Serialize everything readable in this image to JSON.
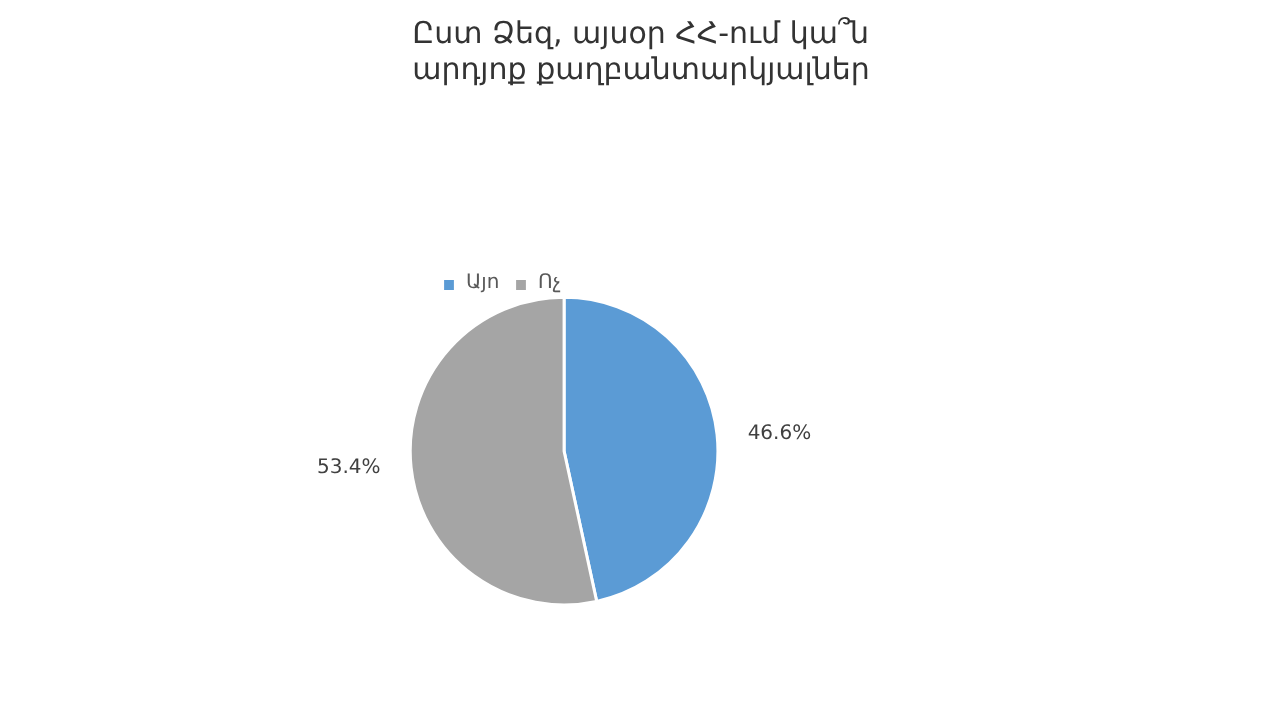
{
  "chart_data": {
    "type": "pie",
    "title": "Ըստ Ձեզ, այսօր ՀՀ-ում կա՞ն\nարդյոք քաղբանտարկյալներ",
    "categories": [
      "Այո",
      "Ոչ"
    ],
    "values": [
      46.6,
      53.4
    ],
    "colors": [
      "#5b9bd5",
      "#a5a5a5"
    ],
    "value_labels": [
      "46.6%",
      "53.4%"
    ],
    "legend": "top"
  }
}
